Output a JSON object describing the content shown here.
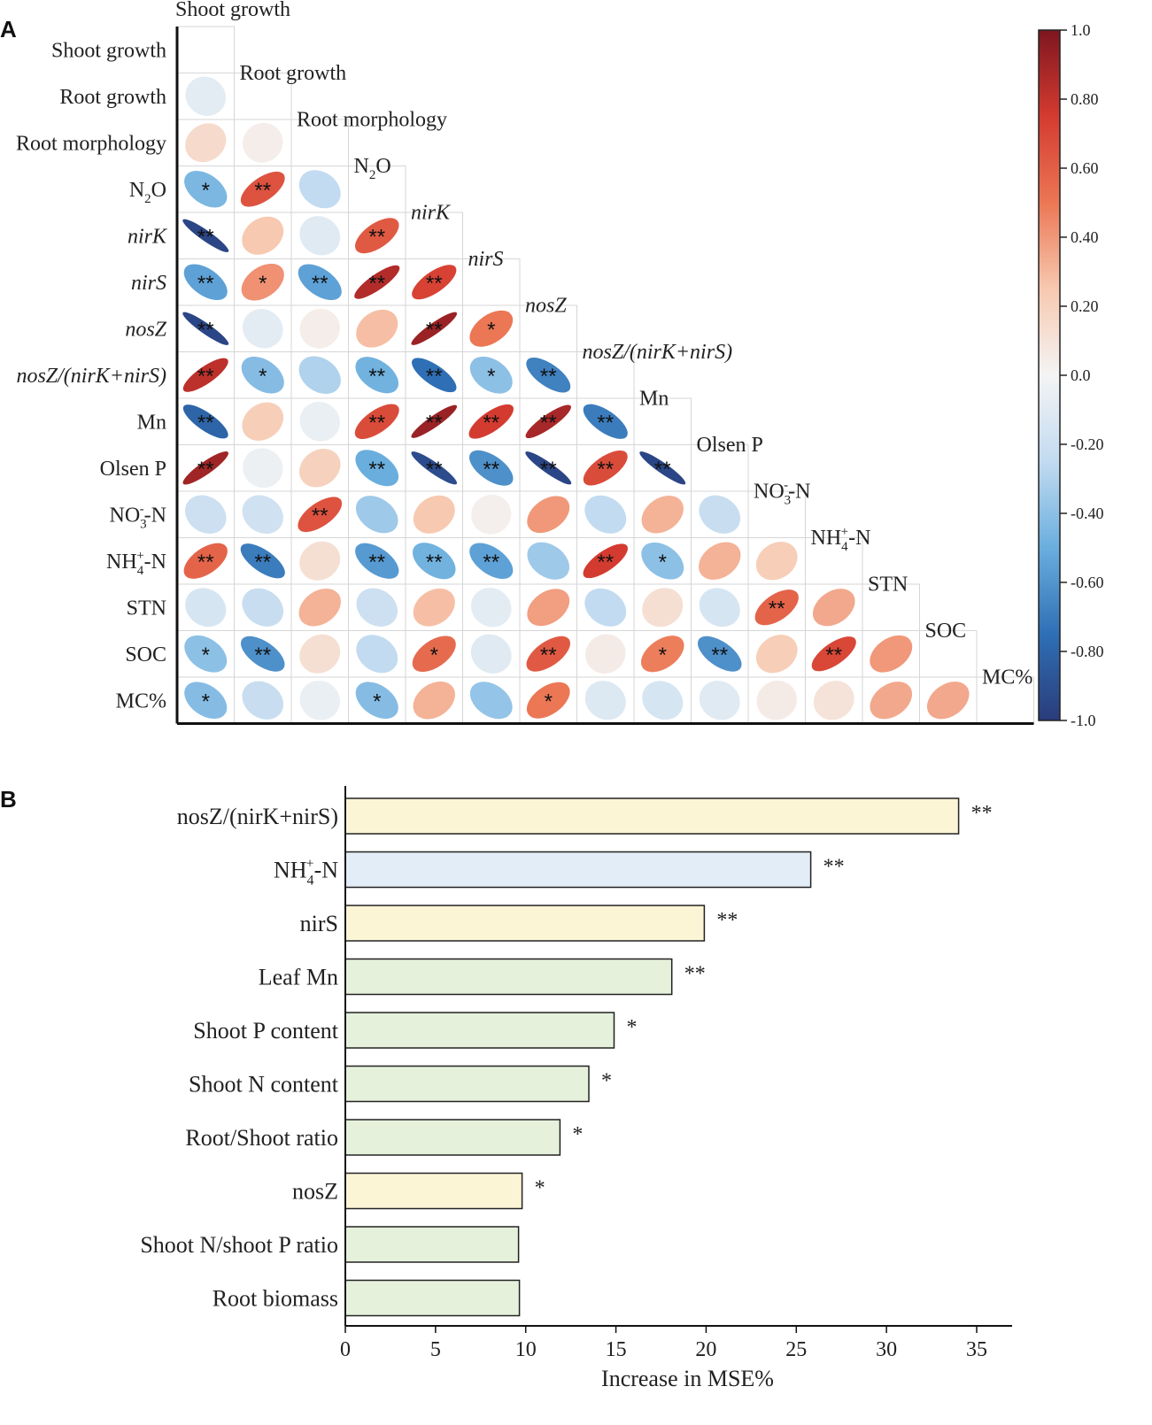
{
  "chart_data": [
    {
      "type": "heatmap",
      "panel_label": "A",
      "subtype": "correlation-ellipse-matrix",
      "variables": [
        {
          "text": "Shoot growth"
        },
        {
          "text": "Root growth"
        },
        {
          "text": "Root morphology"
        },
        {
          "text": "N2O",
          "base": "N",
          "sub": "2",
          "tail": "O"
        },
        {
          "text": "nirK",
          "italic": true
        },
        {
          "text": "nirS",
          "italic": true
        },
        {
          "text": "nosZ",
          "italic": true
        },
        {
          "text": "nosZ/(nirK+nirS)",
          "italic": true
        },
        {
          "text": "Mn"
        },
        {
          "text": "Olsen P"
        },
        {
          "text": "NO3--N",
          "base": "NO",
          "sub": "3",
          "sup": "-",
          "tail": "-N"
        },
        {
          "text": "NH4+-N",
          "base": "NH",
          "sub": "4",
          "sup": "+",
          "tail": "-N"
        },
        {
          "text": "STN"
        },
        {
          "text": "SOC"
        },
        {
          "text": "MC%"
        }
      ],
      "correlations": [
        [],
        [
          -0.08
        ],
        [
          0.15,
          0.04
        ],
        [
          -0.45,
          0.65,
          -0.25
        ],
        [
          -0.95,
          0.25,
          -0.1,
          0.62
        ],
        [
          -0.55,
          0.42,
          -0.55,
          0.85,
          0.72
        ],
        [
          -0.95,
          -0.08,
          0.04,
          0.28,
          0.92,
          0.5
        ],
        [
          0.82,
          -0.42,
          -0.3,
          -0.48,
          -0.75,
          -0.4,
          -0.68
        ],
        [
          -0.8,
          0.22,
          -0.05,
          0.68,
          0.92,
          0.75,
          0.88,
          -0.7
        ],
        [
          0.9,
          -0.04,
          0.2,
          -0.5,
          -0.92,
          -0.62,
          -0.95,
          0.68,
          -0.95
        ],
        [
          -0.2,
          -0.18,
          0.65,
          -0.35,
          0.25,
          0.03,
          0.4,
          -0.25,
          0.32,
          -0.22
        ],
        [
          0.58,
          -0.7,
          0.12,
          -0.58,
          -0.48,
          -0.55,
          -0.35,
          0.75,
          -0.4,
          0.32,
          0.22
        ],
        [
          -0.15,
          -0.22,
          0.32,
          -0.2,
          0.28,
          -0.08,
          0.38,
          -0.25,
          0.12,
          -0.15,
          0.58,
          0.35
        ],
        [
          -0.4,
          -0.62,
          0.12,
          -0.25,
          0.55,
          -0.1,
          0.62,
          0.05,
          0.48,
          -0.62,
          0.22,
          0.7,
          0.4
        ],
        [
          -0.42,
          -0.22,
          -0.05,
          -0.42,
          0.32,
          -0.38,
          0.5,
          -0.12,
          -0.15,
          -0.1,
          0.05,
          0.1,
          0.35,
          0.35
        ]
      ],
      "significance": [
        [],
        [
          ""
        ],
        [
          "",
          ""
        ],
        [
          "*",
          "**",
          ""
        ],
        [
          "**",
          "",
          "",
          "**"
        ],
        [
          "**",
          "*",
          "**",
          "**",
          "**"
        ],
        [
          "**",
          "",
          "",
          "",
          "**",
          "*"
        ],
        [
          "**",
          "*",
          "",
          "**",
          "**",
          "*",
          "**"
        ],
        [
          "**",
          "",
          "",
          "**",
          "**",
          "**",
          "**",
          "**"
        ],
        [
          "**",
          "",
          "",
          "**",
          "**",
          "**",
          "**",
          "**",
          "**"
        ],
        [
          "",
          "",
          "**",
          "",
          "",
          "",
          "",
          "",
          "",
          ""
        ],
        [
          "**",
          "**",
          "",
          "**",
          "**",
          "**",
          "",
          "**",
          "*",
          "",
          ""
        ],
        [
          "",
          "",
          "",
          "",
          "",
          "",
          "",
          "",
          "",
          "",
          "**",
          ""
        ],
        [
          "*",
          "**",
          "",
          "",
          "*",
          "",
          "**",
          "",
          "*",
          "**",
          "",
          "**",
          ""
        ],
        [
          "*",
          "",
          "",
          "*",
          "",
          "",
          "*",
          "",
          "",
          "",
          "",
          "",
          "",
          ""
        ]
      ],
      "colorbar": {
        "range": [
          -1.0,
          1.0
        ],
        "ticks": [
          "1.0",
          "0.80",
          "0.60",
          "0.40",
          "0.20",
          "0.0",
          "-0.20",
          "-0.40",
          "-0.60",
          "-0.80",
          "-1.0"
        ],
        "colors": [
          "#2a3c7a",
          "#2f6fb5",
          "#6aaede",
          "#c2dbf0",
          "#f4f4f4",
          "#f7c9b0",
          "#eb7755",
          "#d43b30",
          "#7e1620"
        ]
      }
    },
    {
      "type": "bar",
      "orientation": "horizontal",
      "panel_label": "B",
      "categories": [
        {
          "text": "nosZ/(nirK+nirS)"
        },
        {
          "text": "NH4+-N",
          "base": "NH",
          "sub": "4",
          "sup": "+",
          "tail": "-N"
        },
        {
          "text": "nirS"
        },
        {
          "text": "Leaf Mn"
        },
        {
          "text": "Shoot P content"
        },
        {
          "text": "Shoot N content"
        },
        {
          "text": "Root/Shoot ratio"
        },
        {
          "text": "nosZ"
        },
        {
          "text": "Shoot N/shoot P ratio"
        },
        {
          "text": "Root biomass"
        }
      ],
      "values": [
        34.0,
        25.8,
        19.9,
        18.1,
        14.9,
        13.5,
        11.9,
        9.8,
        9.6,
        9.65
      ],
      "significance": [
        "**",
        "**",
        "**",
        "**",
        "*",
        "*",
        "*",
        "*",
        "",
        ""
      ],
      "group_colors": [
        "#fbf5d6",
        "#e3edf7",
        "#fbf5d6",
        "#e6f1dc",
        "#e6f1dc",
        "#e6f1dc",
        "#e6f1dc",
        "#fbf5d6",
        "#e6f1dc",
        "#e6f1dc"
      ],
      "xlabel": "Increase in MSE%",
      "xlim": [
        0,
        35
      ],
      "xticks": [
        0,
        5,
        10,
        15,
        20,
        25,
        30,
        35
      ]
    }
  ]
}
